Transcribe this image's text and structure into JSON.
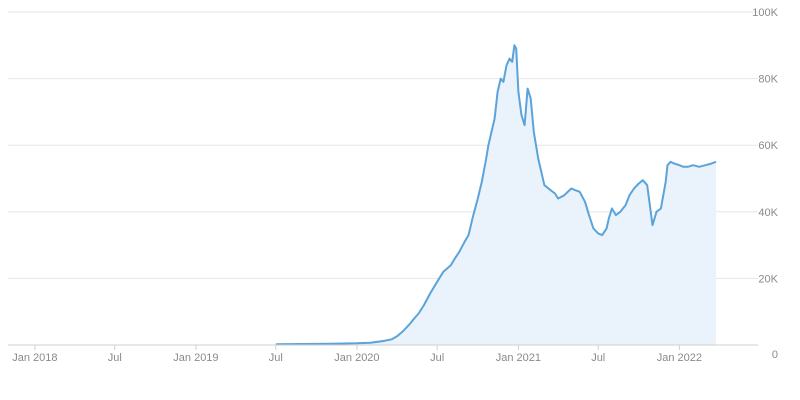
{
  "chart_data": {
    "type": "area",
    "title": "",
    "xlabel": "",
    "ylabel": "",
    "xlim": [
      "2017-11-01",
      "2022-06-01"
    ],
    "ylim": [
      0,
      100000
    ],
    "grid": true,
    "legend": "none",
    "colors": {
      "line": "#5ba3d9",
      "fill": "#eaf3fb",
      "grid": "#e6e6e6",
      "axis": "#cfcfcf",
      "tick_text": "#8a8a8a"
    },
    "y_ticks": [
      {
        "value": 0,
        "label": "0"
      },
      {
        "value": 20000,
        "label": "20K"
      },
      {
        "value": 40000,
        "label": "40K"
      },
      {
        "value": 60000,
        "label": "60K"
      },
      {
        "value": 80000,
        "label": "80K"
      },
      {
        "value": 100000,
        "label": "100K"
      }
    ],
    "x_ticks": [
      {
        "value": "2018-01-01",
        "label": "Jan 2018"
      },
      {
        "value": "2018-07-01",
        "label": "Jul"
      },
      {
        "value": "2019-01-01",
        "label": "Jan 2019"
      },
      {
        "value": "2019-07-01",
        "label": "Jul"
      },
      {
        "value": "2020-01-01",
        "label": "Jan 2020"
      },
      {
        "value": "2020-07-01",
        "label": "Jul"
      },
      {
        "value": "2021-01-01",
        "label": "Jan 2021"
      },
      {
        "value": "2021-07-01",
        "label": "Jul"
      },
      {
        "value": "2022-01-01",
        "label": "Jan 2022"
      }
    ],
    "series": [
      {
        "x": [
          "2019-07-01",
          "2019-09-01",
          "2019-11-01",
          "2020-01-01",
          "2020-02-01",
          "2020-03-01",
          "2020-03-20",
          "2020-04-01",
          "2020-04-15",
          "2020-05-01",
          "2020-05-10",
          "2020-05-20",
          "2020-06-01",
          "2020-06-15",
          "2020-07-01",
          "2020-07-15",
          "2020-08-01",
          "2020-08-10",
          "2020-08-20",
          "2020-09-01",
          "2020-09-10",
          "2020-09-20",
          "2020-10-01",
          "2020-10-10",
          "2020-10-20",
          "2020-10-25",
          "2020-11-01",
          "2020-11-08",
          "2020-11-15",
          "2020-11-22",
          "2020-11-28",
          "2020-12-05",
          "2020-12-12",
          "2020-12-18",
          "2020-12-23",
          "2020-12-27",
          "2021-01-01",
          "2021-01-08",
          "2021-01-15",
          "2021-01-22",
          "2021-01-29",
          "2021-02-05",
          "2021-02-15",
          "2021-03-01",
          "2021-03-15",
          "2021-03-25",
          "2021-04-01",
          "2021-04-15",
          "2021-05-01",
          "2021-05-10",
          "2021-05-20",
          "2021-06-01",
          "2021-06-10",
          "2021-06-20",
          "2021-07-01",
          "2021-07-10",
          "2021-07-20",
          "2021-07-25",
          "2021-08-01",
          "2021-08-10",
          "2021-08-20",
          "2021-09-01",
          "2021-09-10",
          "2021-09-20",
          "2021-10-01",
          "2021-10-10",
          "2021-10-20",
          "2021-10-25",
          "2021-11-01",
          "2021-11-10",
          "2021-11-20",
          "2021-12-01",
          "2021-12-05",
          "2021-12-12",
          "2021-12-20",
          "2022-01-01",
          "2022-01-10",
          "2022-01-20",
          "2022-02-01",
          "2022-02-15",
          "2022-03-01",
          "2022-03-15",
          "2022-03-25"
        ],
        "values": [
          200,
          300,
          400,
          500,
          700,
          1200,
          1700,
          2600,
          4200,
          6500,
          8000,
          9500,
          12000,
          15500,
          19000,
          22000,
          24000,
          26000,
          28000,
          31000,
          33000,
          38500,
          44000,
          49000,
          56000,
          60000,
          64000,
          68000,
          76000,
          80000,
          79000,
          84000,
          86000,
          85000,
          90000,
          89000,
          76000,
          69000,
          66000,
          77000,
          74000,
          64000,
          56000,
          48000,
          46500,
          45500,
          44000,
          45000,
          47000,
          46500,
          46000,
          43000,
          39000,
          35000,
          33500,
          33000,
          35000,
          38000,
          41000,
          39000,
          40000,
          42000,
          45000,
          47000,
          48500,
          49500,
          48000,
          43000,
          36000,
          40000,
          41000,
          49000,
          54000,
          55000,
          54500,
          54000,
          53500,
          53500,
          54000,
          53500,
          54000,
          54500,
          55000
        ]
      }
    ]
  }
}
